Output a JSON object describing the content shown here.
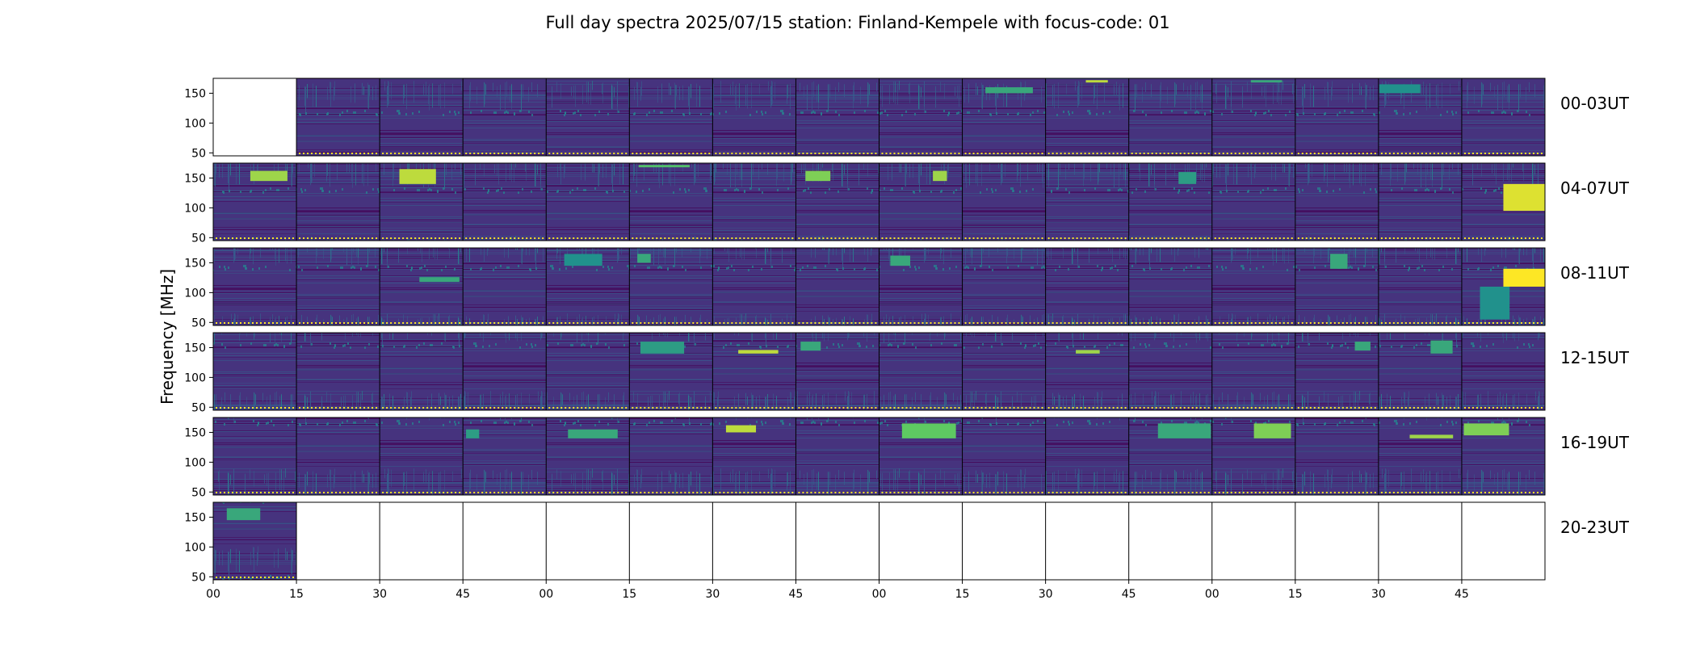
{
  "figure": {
    "title": "Full day spectra 2025/07/15 station: Finland-Kempele with focus-code: 01",
    "ylabel": "Frequency [MHz]"
  },
  "colors": {
    "viridis_dark": "#440154",
    "viridis_base": "#46337e",
    "viridis_mid": "#365c8d",
    "viridis_teal": "#277f8e",
    "viridis_green": "#4ac16d",
    "viridis_yellow": "#fde725",
    "marker_dots": "#fde725"
  },
  "chart_data": {
    "type": "heatmap",
    "title": "Full day spectra 2025/07/15 station: Finland-Kempele with focus-code: 01",
    "ylabel": "Frequency [MHz]",
    "ylim": [
      45,
      175
    ],
    "ytick_labels": [
      "150",
      "100",
      "50"
    ],
    "yticks": [
      150,
      100,
      50
    ],
    "xtick_labels": [
      "00",
      "15",
      "30",
      "45",
      "00",
      "15",
      "30",
      "45",
      "00",
      "15",
      "30",
      "45",
      "00",
      "15",
      "30",
      "45"
    ],
    "panel_minutes": 15,
    "panels_per_row": 16,
    "colormap": "viridis",
    "rows": [
      {
        "label": "00-03UT",
        "filled_panels": [
          2,
          3,
          4,
          5,
          6,
          7,
          8,
          9,
          10,
          11,
          12,
          13,
          14,
          15,
          16
        ],
        "bursts": [
          {
            "panel": 10,
            "f_low": 150,
            "f_high": 160,
            "intensity": 0.6
          },
          {
            "panel": 11,
            "f_low": 168,
            "f_high": 172,
            "intensity": 0.9
          },
          {
            "panel": 13,
            "f_low": 168,
            "f_high": 172,
            "intensity": 0.6
          },
          {
            "panel": 15,
            "f_low": 150,
            "f_high": 165,
            "intensity": 0.5
          }
        ]
      },
      {
        "label": "04-07UT",
        "filled_panels": [
          1,
          2,
          3,
          4,
          5,
          6,
          7,
          8,
          9,
          10,
          11,
          12,
          13,
          14,
          15,
          16
        ],
        "bursts": [
          {
            "panel": 1,
            "f_low": 145,
            "f_high": 162,
            "intensity": 0.85
          },
          {
            "panel": 3,
            "f_low": 140,
            "f_high": 165,
            "intensity": 0.9
          },
          {
            "panel": 6,
            "f_low": 168,
            "f_high": 172,
            "intensity": 0.7
          },
          {
            "panel": 8,
            "f_low": 145,
            "f_high": 162,
            "intensity": 0.8
          },
          {
            "panel": 9,
            "f_low": 145,
            "f_high": 162,
            "intensity": 0.85
          },
          {
            "panel": 12,
            "f_low": 140,
            "f_high": 160,
            "intensity": 0.55
          },
          {
            "panel": 16,
            "f_low": 95,
            "f_high": 140,
            "intensity": 0.95
          }
        ]
      },
      {
        "label": "08-11UT",
        "filled_panels": [
          1,
          2,
          3,
          4,
          5,
          6,
          7,
          8,
          9,
          10,
          11,
          12,
          13,
          14,
          15,
          16
        ],
        "bursts": [
          {
            "panel": 3,
            "f_low": 118,
            "f_high": 126,
            "intensity": 0.6
          },
          {
            "panel": 5,
            "f_low": 145,
            "f_high": 165,
            "intensity": 0.5
          },
          {
            "panel": 6,
            "f_low": 150,
            "f_high": 165,
            "intensity": 0.6
          },
          {
            "panel": 9,
            "f_low": 145,
            "f_high": 162,
            "intensity": 0.6
          },
          {
            "panel": 14,
            "f_low": 140,
            "f_high": 165,
            "intensity": 0.6
          },
          {
            "panel": 16,
            "f_low": 110,
            "f_high": 140,
            "intensity": 1.0
          },
          {
            "panel": 16,
            "f_low": 55,
            "f_high": 110,
            "intensity": 0.5
          }
        ]
      },
      {
        "label": "12-15UT",
        "filled_panels": [
          1,
          2,
          3,
          4,
          5,
          6,
          7,
          8,
          9,
          10,
          11,
          12,
          13,
          14,
          15,
          16
        ],
        "bursts": [
          {
            "panel": 6,
            "f_low": 140,
            "f_high": 160,
            "intensity": 0.55
          },
          {
            "panel": 7,
            "f_low": 140,
            "f_high": 146,
            "intensity": 0.9
          },
          {
            "panel": 8,
            "f_low": 145,
            "f_high": 160,
            "intensity": 0.6
          },
          {
            "panel": 11,
            "f_low": 140,
            "f_high": 146,
            "intensity": 0.85
          },
          {
            "panel": 14,
            "f_low": 145,
            "f_high": 160,
            "intensity": 0.6
          },
          {
            "panel": 15,
            "f_low": 140,
            "f_high": 162,
            "intensity": 0.6
          }
        ]
      },
      {
        "label": "16-19UT",
        "filled_panels": [
          1,
          2,
          3,
          4,
          5,
          6,
          7,
          8,
          9,
          10,
          11,
          12,
          13,
          14,
          15,
          16
        ],
        "bursts": [
          {
            "panel": 4,
            "f_low": 140,
            "f_high": 155,
            "intensity": 0.55
          },
          {
            "panel": 5,
            "f_low": 140,
            "f_high": 155,
            "intensity": 0.6
          },
          {
            "panel": 7,
            "f_low": 150,
            "f_high": 162,
            "intensity": 0.9
          },
          {
            "panel": 9,
            "f_low": 140,
            "f_high": 165,
            "intensity": 0.75
          },
          {
            "panel": 12,
            "f_low": 140,
            "f_high": 165,
            "intensity": 0.6
          },
          {
            "panel": 13,
            "f_low": 140,
            "f_high": 165,
            "intensity": 0.8
          },
          {
            "panel": 15,
            "f_low": 140,
            "f_high": 146,
            "intensity": 0.85
          },
          {
            "panel": 16,
            "f_low": 145,
            "f_high": 165,
            "intensity": 0.8
          }
        ]
      },
      {
        "label": "20-23UT",
        "filled_panels": [
          1
        ],
        "bursts": [
          {
            "panel": 1,
            "f_low": 145,
            "f_high": 165,
            "intensity": 0.6
          }
        ]
      }
    ]
  }
}
